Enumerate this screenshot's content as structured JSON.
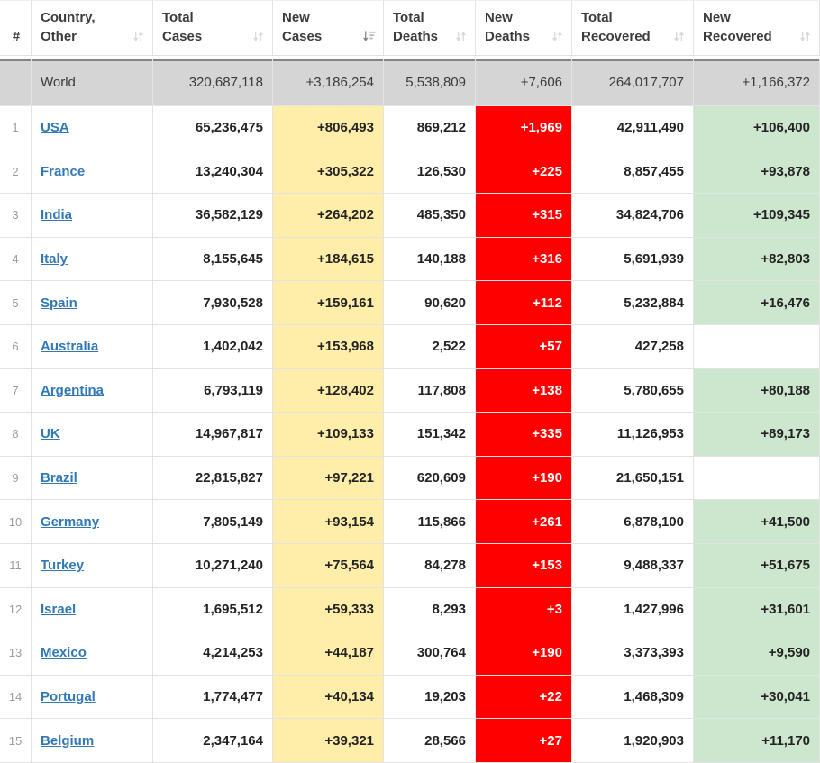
{
  "table": {
    "columns": [
      {
        "key": "rank",
        "line1": "",
        "line2": "#",
        "icon": null
      },
      {
        "key": "country",
        "line1": "Country,",
        "line2": "Other",
        "icon": "sort-both-icon"
      },
      {
        "key": "total_cases",
        "line1": "Total",
        "line2": "Cases",
        "icon": "sort-both-icon"
      },
      {
        "key": "new_cases",
        "line1": "New",
        "line2": "Cases",
        "icon": "sort-desc-active-icon"
      },
      {
        "key": "total_deaths",
        "line1": "Total",
        "line2": "Deaths",
        "icon": "sort-both-icon"
      },
      {
        "key": "new_deaths",
        "line1": "New",
        "line2": "Deaths",
        "icon": "sort-both-icon"
      },
      {
        "key": "total_recovered",
        "line1": "Total",
        "line2": "Recovered",
        "icon": "sort-both-icon"
      },
      {
        "key": "new_recovered",
        "line1": "New",
        "line2": "Recovered",
        "icon": "sort-both-icon"
      }
    ],
    "world": {
      "rank": "",
      "country": "World",
      "total_cases": "320,687,118",
      "new_cases": "+3,186,254",
      "total_deaths": "5,538,809",
      "new_deaths": "+7,606",
      "total_recovered": "264,017,707",
      "new_recovered": "+1,166,372"
    },
    "rows": [
      {
        "rank": "1",
        "country": "USA",
        "total_cases": "65,236,475",
        "new_cases": "+806,493",
        "total_deaths": "869,212",
        "new_deaths": "+1,969",
        "total_recovered": "42,911,490",
        "new_recovered": "+106,400"
      },
      {
        "rank": "2",
        "country": "France",
        "total_cases": "13,240,304",
        "new_cases": "+305,322",
        "total_deaths": "126,530",
        "new_deaths": "+225",
        "total_recovered": "8,857,455",
        "new_recovered": "+93,878"
      },
      {
        "rank": "3",
        "country": "India",
        "total_cases": "36,582,129",
        "new_cases": "+264,202",
        "total_deaths": "485,350",
        "new_deaths": "+315",
        "total_recovered": "34,824,706",
        "new_recovered": "+109,345"
      },
      {
        "rank": "4",
        "country": "Italy",
        "total_cases": "8,155,645",
        "new_cases": "+184,615",
        "total_deaths": "140,188",
        "new_deaths": "+316",
        "total_recovered": "5,691,939",
        "new_recovered": "+82,803"
      },
      {
        "rank": "5",
        "country": "Spain",
        "total_cases": "7,930,528",
        "new_cases": "+159,161",
        "total_deaths": "90,620",
        "new_deaths": "+112",
        "total_recovered": "5,232,884",
        "new_recovered": "+16,476"
      },
      {
        "rank": "6",
        "country": "Australia",
        "total_cases": "1,402,042",
        "new_cases": "+153,968",
        "total_deaths": "2,522",
        "new_deaths": "+57",
        "total_recovered": "427,258",
        "new_recovered": ""
      },
      {
        "rank": "7",
        "country": "Argentina",
        "total_cases": "6,793,119",
        "new_cases": "+128,402",
        "total_deaths": "117,808",
        "new_deaths": "+138",
        "total_recovered": "5,780,655",
        "new_recovered": "+80,188"
      },
      {
        "rank": "8",
        "country": "UK",
        "total_cases": "14,967,817",
        "new_cases": "+109,133",
        "total_deaths": "151,342",
        "new_deaths": "+335",
        "total_recovered": "11,126,953",
        "new_recovered": "+89,173"
      },
      {
        "rank": "9",
        "country": "Brazil",
        "total_cases": "22,815,827",
        "new_cases": "+97,221",
        "total_deaths": "620,609",
        "new_deaths": "+190",
        "total_recovered": "21,650,151",
        "new_recovered": ""
      },
      {
        "rank": "10",
        "country": "Germany",
        "total_cases": "7,805,149",
        "new_cases": "+93,154",
        "total_deaths": "115,866",
        "new_deaths": "+261",
        "total_recovered": "6,878,100",
        "new_recovered": "+41,500"
      },
      {
        "rank": "11",
        "country": "Turkey",
        "total_cases": "10,271,240",
        "new_cases": "+75,564",
        "total_deaths": "84,278",
        "new_deaths": "+153",
        "total_recovered": "9,488,337",
        "new_recovered": "+51,675"
      },
      {
        "rank": "12",
        "country": "Israel",
        "total_cases": "1,695,512",
        "new_cases": "+59,333",
        "total_deaths": "8,293",
        "new_deaths": "+3",
        "total_recovered": "1,427,996",
        "new_recovered": "+31,601"
      },
      {
        "rank": "13",
        "country": "Mexico",
        "total_cases": "4,214,253",
        "new_cases": "+44,187",
        "total_deaths": "300,764",
        "new_deaths": "+190",
        "total_recovered": "3,373,393",
        "new_recovered": "+9,590"
      },
      {
        "rank": "14",
        "country": "Portugal",
        "total_cases": "1,774,477",
        "new_cases": "+40,134",
        "total_deaths": "19,203",
        "new_deaths": "+22",
        "total_recovered": "1,468,309",
        "new_recovered": "+30,041"
      },
      {
        "rank": "15",
        "country": "Belgium",
        "total_cases": "2,347,164",
        "new_cases": "+39,321",
        "total_deaths": "28,566",
        "new_deaths": "+27",
        "total_recovered": "1,920,903",
        "new_recovered": "+11,170"
      }
    ]
  },
  "colors": {
    "new_cases_bg": "#FFEEAA",
    "new_deaths_bg": "#FF0000",
    "new_recovered_bg": "#CDE6CE",
    "world_row_bg": "#D5D5D5",
    "link": "#3178B5"
  }
}
